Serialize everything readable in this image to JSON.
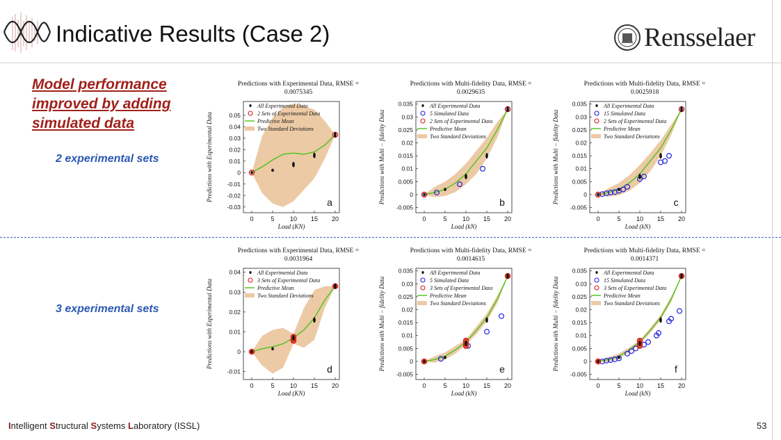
{
  "slide": {
    "title": "Indicative Results (Case 2)",
    "logo_text": "Rensselaer",
    "note": "Model performance improved by adding simulated data",
    "set_labels": [
      "2 experimental sets",
      "3 experimental sets"
    ],
    "footer": {
      "parts": [
        {
          "bold": "I",
          "rest": "ntelligent "
        },
        {
          "bold": "S",
          "rest": "tructural "
        },
        {
          "bold": "S",
          "rest": "ystems "
        },
        {
          "bold": "L",
          "rest": "aboratory (ISSL)"
        }
      ],
      "page": "53"
    },
    "colors": {
      "title_red": "#a0201a",
      "label_blue": "#2b58b3",
      "divider": "#3a63b5",
      "band": "#eccaa5",
      "mean": "#4cc21a"
    }
  },
  "chart_data": [
    {
      "type": "line",
      "panel": "a",
      "title_line1": "Predictions with Experimental Data, RMSE =",
      "title_line2": "0.0075345",
      "xlabel": "Load (KN)",
      "ylabel": "Predictions with Experimental Data",
      "xlim": [
        -2,
        21
      ],
      "ylim": [
        -0.035,
        0.062
      ],
      "xticks": [
        0,
        5,
        10,
        15,
        20
      ],
      "yticks": [
        0.05,
        0.04,
        0.03,
        0.02,
        0.01,
        0,
        -0.01,
        -0.02,
        -0.03
      ],
      "ytick_labels": [
        "0.05",
        "0.04",
        "0.03",
        "0.02",
        "0.01",
        "0",
        "-0.01",
        "-0.02",
        "-0.03"
      ],
      "legend": [
        "All Experimental Data",
        "2 Sets of Experimental Data",
        "Predictive Mean",
        "Two Standard Deviations"
      ],
      "mean": {
        "x": [
          0,
          2.5,
          5,
          7.5,
          10,
          12.5,
          15,
          17.5,
          20
        ],
        "y": [
          0,
          0.005,
          0.011,
          0.016,
          0.017,
          0.016,
          0.018,
          0.024,
          0.033
        ]
      },
      "band": {
        "x": [
          0,
          2.5,
          5,
          7.5,
          10,
          12.5,
          15,
          17.5,
          20
        ],
        "lower": [
          0,
          -0.018,
          -0.027,
          -0.03,
          -0.025,
          -0.015,
          -0.005,
          0.012,
          0.033
        ],
        "upper": [
          0,
          0.032,
          0.048,
          0.057,
          0.06,
          0.058,
          0.055,
          0.045,
          0.033
        ]
      },
      "exp_all": {
        "x": [
          0,
          5,
          10,
          15,
          20
        ],
        "y": [
          0,
          0.002,
          0.007,
          0.015,
          0.033
        ]
      },
      "exp_sets": {
        "x": [
          0,
          20
        ],
        "y": [
          0,
          0.033
        ]
      },
      "sim": {
        "x": [],
        "y": []
      },
      "sim_label": ""
    },
    {
      "type": "line",
      "panel": "b",
      "title_line1": "Predictions with Multi-fidelity Data, RMSE =",
      "title_line2": "0.0029635",
      "xlabel": "Load (kN)",
      "ylabel": "Predictions with Multi − fidelity Data",
      "xlim": [
        -2,
        21
      ],
      "ylim": [
        -0.007,
        0.036
      ],
      "xticks": [
        0,
        5,
        10,
        15,
        20
      ],
      "yticks": [
        0.035,
        0.03,
        0.025,
        0.02,
        0.015,
        0.01,
        0.005,
        0,
        -0.005
      ],
      "ytick_labels": [
        "0.035",
        "0.03",
        "0.025",
        "0.02",
        "0.015",
        "0.01",
        "0.005",
        "0",
        "-0.005"
      ],
      "legend": [
        "All Experimental Data",
        "5 Simulated Data",
        "2 Sets of Experimental Data",
        "Predictive Mean",
        "Two Standard Deviations"
      ],
      "mean": {
        "x": [
          0,
          2.5,
          5,
          7.5,
          10,
          12.5,
          15,
          17.5,
          20
        ],
        "y": [
          0,
          0.0008,
          0.002,
          0.0045,
          0.008,
          0.013,
          0.018,
          0.025,
          0.033
        ]
      },
      "band": {
        "x": [
          0,
          2.5,
          5,
          7.5,
          10,
          12.5,
          15,
          17.5,
          20
        ],
        "lower": [
          0,
          -0.001,
          -0.0005,
          0.001,
          0.004,
          0.008,
          0.014,
          0.022,
          0.033
        ],
        "upper": [
          0,
          0.003,
          0.005,
          0.008,
          0.012,
          0.017,
          0.022,
          0.028,
          0.033
        ]
      },
      "exp_all": {
        "x": [
          0,
          5,
          10,
          15,
          20
        ],
        "y": [
          0,
          0.002,
          0.007,
          0.015,
          0.033
        ]
      },
      "exp_sets": {
        "x": [
          0,
          20
        ],
        "y": [
          0,
          0.033
        ]
      },
      "sim": {
        "x": [
          0,
          3,
          8.5,
          14,
          20
        ],
        "y": [
          0,
          0.0008,
          0.004,
          0.01,
          0.033
        ]
      },
      "sim_label": ""
    },
    {
      "type": "line",
      "panel": "c",
      "title_line1": "Predictions with Multi-fidelity Data, RMSE =",
      "title_line2": "0.0025918",
      "xlabel": "Load (kN)",
      "ylabel": "Predictions with Multi − fidelity Data",
      "xlim": [
        -2,
        21
      ],
      "ylim": [
        -0.007,
        0.036
      ],
      "xticks": [
        0,
        5,
        10,
        15,
        20
      ],
      "yticks": [
        0.035,
        0.03,
        0.025,
        0.02,
        0.015,
        0.01,
        0.005,
        0,
        -0.005
      ],
      "ytick_labels": [
        "0.035",
        "0.03",
        "0.025",
        "0.02",
        "0.015",
        "0.01",
        "0.005",
        "0",
        "-0.005"
      ],
      "legend": [
        "All Experimental Data",
        "15 Simulated Data",
        "2 Sets of Experimental Data",
        "Predictive Mean",
        "Two Standard Deviations"
      ],
      "mean": {
        "x": [
          0,
          2.5,
          5,
          7.5,
          10,
          12.5,
          15,
          17.5,
          20
        ],
        "y": [
          0,
          0.0008,
          0.002,
          0.0045,
          0.008,
          0.013,
          0.018,
          0.025,
          0.033
        ]
      },
      "band": {
        "x": [
          0,
          2.5,
          5,
          7.5,
          10,
          12.5,
          15,
          17.5,
          20
        ],
        "lower": [
          0,
          -0.0008,
          -0.0002,
          0.0015,
          0.0045,
          0.009,
          0.015,
          0.023,
          0.033
        ],
        "upper": [
          0,
          0.0025,
          0.0045,
          0.0075,
          0.0115,
          0.016,
          0.021,
          0.027,
          0.033
        ]
      },
      "exp_all": {
        "x": [
          0,
          5,
          10,
          15,
          20
        ],
        "y": [
          0,
          0.002,
          0.007,
          0.015,
          0.033
        ]
      },
      "exp_sets": {
        "x": [
          0,
          20
        ],
        "y": [
          0,
          0.033
        ]
      },
      "sim": {
        "x": [
          0,
          1,
          2,
          3,
          4,
          5,
          6,
          7,
          10,
          11,
          15,
          16,
          17,
          20
        ],
        "y": [
          0,
          0.0002,
          0.0005,
          0.0008,
          0.001,
          0.0015,
          0.002,
          0.003,
          0.006,
          0.007,
          0.0125,
          0.013,
          0.015,
          0.033
        ]
      },
      "sim_label": ""
    },
    {
      "type": "line",
      "panel": "d",
      "title_line1": "Predictions with Experimental Data, RMSE =",
      "title_line2": "0.0031964",
      "xlabel": "Load (KN)",
      "ylabel": "Predictions with Experimental Data",
      "xlim": [
        -2,
        21
      ],
      "ylim": [
        -0.014,
        0.042
      ],
      "xticks": [
        0,
        5,
        10,
        15,
        20
      ],
      "yticks": [
        0.04,
        0.03,
        0.02,
        0.01,
        0,
        -0.01
      ],
      "ytick_labels": [
        "0.04",
        "0.03",
        "0.02",
        "0.01",
        "0",
        "-0.01"
      ],
      "legend": [
        "All Experimental Data",
        "3 Sets of Experimental Data",
        "Predictive Mean",
        "Two Standard Deviations"
      ],
      "mean": {
        "x": [
          0,
          2.5,
          5,
          7.5,
          10,
          12.5,
          15,
          17.5,
          20
        ],
        "y": [
          0,
          0.0015,
          0.0025,
          0.004,
          0.007,
          0.011,
          0.017,
          0.026,
          0.033
        ]
      },
      "band": {
        "x": [
          0,
          2.5,
          5,
          7.5,
          10,
          12.5,
          15,
          17.5,
          20
        ],
        "lower": [
          0,
          -0.007,
          -0.011,
          -0.008,
          0.004,
          0.002,
          0.006,
          0.022,
          0.033
        ],
        "upper": [
          0,
          0.008,
          0.011,
          0.012,
          0.009,
          0.022,
          0.031,
          0.033,
          0.033
        ]
      },
      "exp_all": {
        "x": [
          0,
          5,
          10,
          15,
          20
        ],
        "y": [
          0,
          0.0015,
          0.007,
          0.016,
          0.033
        ]
      },
      "exp_sets": {
        "x": [
          0,
          10,
          10,
          10,
          20
        ],
        "y": [
          0,
          0.0055,
          0.0065,
          0.0075,
          0.033
        ]
      },
      "sim": {
        "x": [],
        "y": []
      },
      "sim_label": ""
    },
    {
      "type": "line",
      "panel": "e",
      "title_line1": "Predictions with Multi-fidelity Data, RMSE =",
      "title_line2": "0.0014615",
      "xlabel": "Load (kN)",
      "ylabel": "Predictions with Multi − fidelity Data",
      "xlim": [
        -2,
        21
      ],
      "ylim": [
        -0.007,
        0.036
      ],
      "xticks": [
        0,
        5,
        10,
        15,
        20
      ],
      "yticks": [
        0.035,
        0.03,
        0.025,
        0.02,
        0.015,
        0.01,
        0.005,
        0,
        -0.005
      ],
      "ytick_labels": [
        "0.035",
        "0.03",
        "0.025",
        "0.02",
        "0.015",
        "0.01",
        "0.005",
        "0",
        "-0.005"
      ],
      "legend": [
        "All Experimental Data",
        "5 Simulated Data",
        "3 Sets of Experimental Data",
        "Predictive Mean",
        "Two Standard Deviations"
      ],
      "mean": {
        "x": [
          0,
          2.5,
          5,
          7.5,
          10,
          12.5,
          15,
          17.5,
          20
        ],
        "y": [
          0,
          0.0007,
          0.002,
          0.0045,
          0.0075,
          0.012,
          0.017,
          0.024,
          0.033
        ]
      },
      "band": {
        "x": [
          0,
          2.5,
          5,
          7.5,
          10,
          12.5,
          15,
          17.5,
          20
        ],
        "lower": [
          0,
          -0.0005,
          0.0008,
          0.003,
          0.0065,
          0.0105,
          0.0155,
          0.0225,
          0.033
        ],
        "upper": [
          0,
          0.002,
          0.0035,
          0.006,
          0.0085,
          0.0135,
          0.0185,
          0.0255,
          0.033
        ]
      },
      "exp_all": {
        "x": [
          0,
          5,
          10,
          15,
          20
        ],
        "y": [
          0,
          0.0015,
          0.007,
          0.016,
          0.033
        ]
      },
      "exp_sets": {
        "x": [
          0,
          10,
          10,
          10,
          20
        ],
        "y": [
          0,
          0.006,
          0.007,
          0.008,
          0.033
        ]
      },
      "sim": {
        "x": [
          4,
          10.5,
          15,
          18.5,
          20
        ],
        "y": [
          0.001,
          0.006,
          0.0115,
          0.0175,
          0.033
        ]
      },
      "sim_label": ""
    },
    {
      "type": "line",
      "panel": "f",
      "title_line1": "Predictions with Multi-fidelity Data, RMSE =",
      "title_line2": "0.0014371",
      "xlabel": "Load (kN)",
      "ylabel": "Predictions with Multi − fidelity Data",
      "xlim": [
        -2,
        21
      ],
      "ylim": [
        -0.007,
        0.036
      ],
      "xticks": [
        0,
        5,
        10,
        15,
        20
      ],
      "yticks": [
        0.035,
        0.03,
        0.025,
        0.02,
        0.015,
        0.01,
        0.005,
        0,
        -0.005
      ],
      "ytick_labels": [
        "0.035",
        "0.03",
        "0.025",
        "0.02",
        "0.015",
        "0.01",
        "0.005",
        "0",
        "-0.005"
      ],
      "legend": [
        "All Experimental Data",
        "15 Simulated Data",
        "3 Sets of Experimental Data",
        "Predictive Mean",
        "Two Standard Deviations"
      ],
      "mean": {
        "x": [
          0,
          2.5,
          5,
          7.5,
          10,
          12.5,
          15,
          17.5,
          20
        ],
        "y": [
          0,
          0.0007,
          0.002,
          0.0045,
          0.0075,
          0.012,
          0.017,
          0.024,
          0.033
        ]
      },
      "band": {
        "x": [
          0,
          2.5,
          5,
          7.5,
          10,
          12.5,
          15,
          17.5,
          20
        ],
        "lower": [
          0,
          -0.0003,
          0.001,
          0.0035,
          0.0068,
          0.011,
          0.016,
          0.023,
          0.033
        ],
        "upper": [
          0,
          0.0017,
          0.003,
          0.0055,
          0.0082,
          0.013,
          0.018,
          0.025,
          0.033
        ]
      },
      "exp_all": {
        "x": [
          0,
          5,
          10,
          15,
          20
        ],
        "y": [
          0,
          0.0015,
          0.007,
          0.016,
          0.033
        ]
      },
      "exp_sets": {
        "x": [
          0,
          10,
          10,
          10,
          20
        ],
        "y": [
          0,
          0.006,
          0.007,
          0.008,
          0.033
        ]
      },
      "sim": {
        "x": [
          1,
          2,
          3,
          4,
          5,
          7,
          8,
          9,
          11,
          12,
          14,
          14.5,
          17,
          17.5,
          19.5
        ],
        "y": [
          0,
          0.0003,
          0.0005,
          0.0008,
          0.0012,
          0.003,
          0.004,
          0.005,
          0.0065,
          0.0075,
          0.01,
          0.011,
          0.0155,
          0.0165,
          0.0195
        ]
      },
      "sim_label": ""
    }
  ]
}
